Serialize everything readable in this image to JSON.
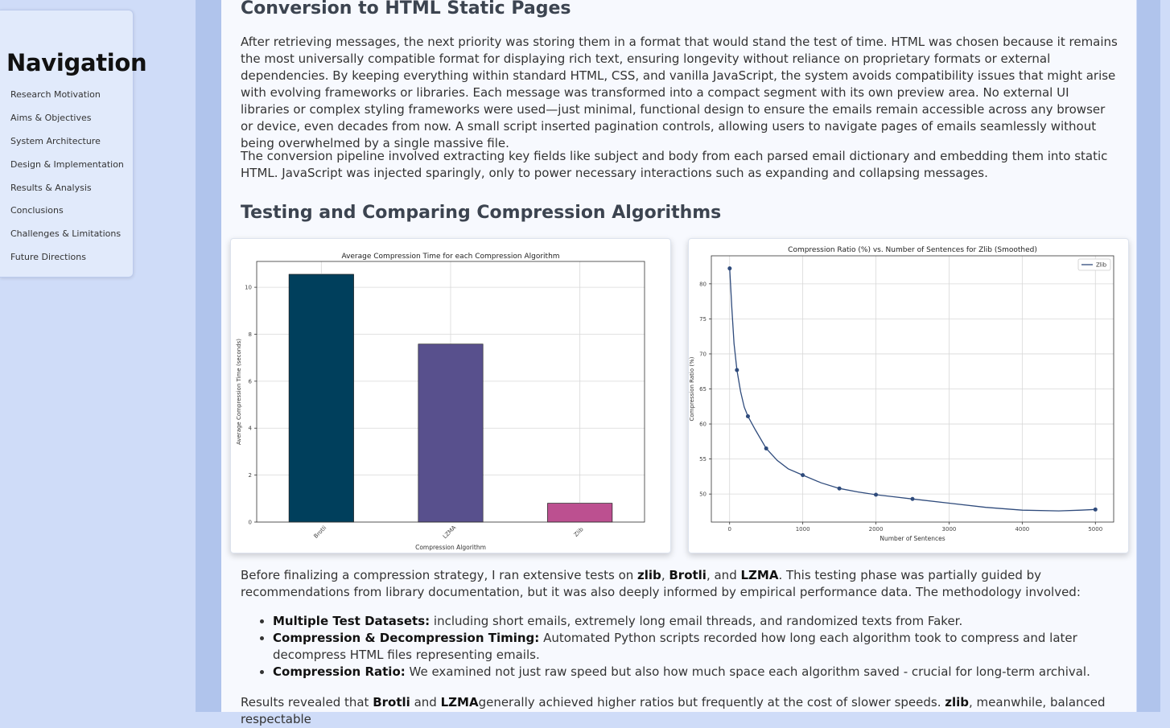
{
  "nav": {
    "title": "Navigation",
    "items": [
      {
        "label": "Research Motivation"
      },
      {
        "label": "Aims & Objectives"
      },
      {
        "label": "System Architecture"
      },
      {
        "label": "Design & Implementation"
      },
      {
        "label": "Results & Analysis"
      },
      {
        "label": "Conclusions"
      },
      {
        "label": "Challenges & Limitations"
      },
      {
        "label": "Future Directions"
      }
    ]
  },
  "section1": {
    "heading": "Conversion to HTML Static Pages",
    "p1": "After retrieving messages, the next priority was storing them in a format that would stand the test of time. HTML was chosen because it remains the most universally compatible format for displaying rich text, ensuring longevity without reliance on proprietary formats or external dependencies. By keeping everything within standard HTML, CSS, and vanilla JavaScript, the system avoids compatibility issues that might arise with evolving frameworks or libraries. Each message was transformed into a compact segment with its own preview area. No external UI libraries or complex styling frameworks were used—just minimal, functional design to ensure the emails remain accessible across any browser or device, even decades from now. A small script inserted pagination controls, allowing users to navigate pages of emails seamlessly without being overwhelmed by a single massive file.",
    "p2": "The conversion pipeline involved extracting key fields like subject and body from each parsed email dictionary and embedding them into static HTML. JavaScript was injected sparingly, only to power necessary interactions such as expanding and collapsing messages."
  },
  "section2": {
    "heading": "Testing and Comparing Compression Algorithms",
    "intro_pre": "Before finalizing a compression strategy, I ran extensive tests on ",
    "intro_b1": "zlib",
    "intro_sep1": ", ",
    "intro_b2": "Brotli",
    "intro_sep2": ", and ",
    "intro_b3": "LZMA",
    "intro_post": ". This testing phase was partially guided by recommendations from library documentation, but it was also deeply informed by empirical performance data. The methodology involved:",
    "bullets": [
      {
        "bold": "Multiple Test Datasets:",
        "text": " including short emails, extremely long email threads, and randomized texts from Faker."
      },
      {
        "bold": "Compression & Decompression Timing:",
        "text": " Automated Python scripts recorded how long each algorithm took to compress and later decompress HTML files representing emails."
      },
      {
        "bold": "Compression Ratio:",
        "text": " We examined not just raw speed but also how much space each algorithm saved - crucial for long-term archival."
      }
    ],
    "results_pre": "Results revealed that ",
    "results_b1": "Brotli",
    "results_mid1": " and ",
    "results_b2": "LZMA",
    "results_mid2": "generally achieved higher ratios but frequently at the cost of slower speeds. ",
    "results_b3": "zlib",
    "results_post": ", meanwhile, balanced respectable"
  },
  "chart_data": [
    {
      "type": "bar",
      "title": "Average Compression Time for each Compression Algorithm",
      "xlabel": "Compression Algorithm",
      "ylabel": "Average Compression Time (seconds)",
      "categories": [
        "Brotli",
        "LZMA",
        "Zlib"
      ],
      "values": [
        10.55,
        7.58,
        0.8
      ],
      "colors": [
        "#003f5c",
        "#58508d",
        "#bc5090"
      ],
      "ylim": [
        0,
        11.1
      ],
      "yticks": [
        0,
        2,
        4,
        6,
        8,
        10
      ],
      "grid": true
    },
    {
      "type": "line",
      "title": "Compression Ratio (%) vs. Number of Sentences for Zlib (Smoothed)",
      "xlabel": "Number of Sentences",
      "ylabel": "Compression Ratio (%)",
      "series": [
        {
          "name": "Zlib",
          "color": "#2f4b7c",
          "points": [
            [
              1,
              82.2
            ],
            [
              100,
              67.7
            ],
            [
              250,
              61.1
            ],
            [
              500,
              56.5
            ],
            [
              1000,
              52.7
            ],
            [
              1500,
              50.8
            ],
            [
              2000,
              49.9
            ],
            [
              2500,
              49.3
            ],
            [
              5000,
              47.8
            ]
          ],
          "smooth": [
            [
              1,
              82.2
            ],
            [
              30,
              76.5
            ],
            [
              60,
              71.5
            ],
            [
              100,
              67.7
            ],
            [
              150,
              64.6
            ],
            [
              200,
              62.4
            ],
            [
              250,
              61.1
            ],
            [
              350,
              59.2
            ],
            [
              500,
              56.5
            ],
            [
              650,
              54.8
            ],
            [
              800,
              53.6
            ],
            [
              1000,
              52.7
            ],
            [
              1250,
              51.6
            ],
            [
              1500,
              50.8
            ],
            [
              1750,
              50.3
            ],
            [
              2000,
              49.9
            ],
            [
              2250,
              49.6
            ],
            [
              2500,
              49.3
            ],
            [
              3000,
              48.7
            ],
            [
              3500,
              48.1
            ],
            [
              4000,
              47.7
            ],
            [
              4500,
              47.6
            ],
            [
              4800,
              47.7
            ],
            [
              5000,
              47.8
            ]
          ]
        }
      ],
      "xlim": [
        -250,
        5250
      ],
      "ylim": [
        46,
        84
      ],
      "xticks": [
        0,
        1000,
        2000,
        3000,
        4000,
        5000
      ],
      "yticks": [
        50,
        55,
        60,
        65,
        70,
        75,
        80
      ],
      "grid": true,
      "legend": "top-right"
    }
  ]
}
